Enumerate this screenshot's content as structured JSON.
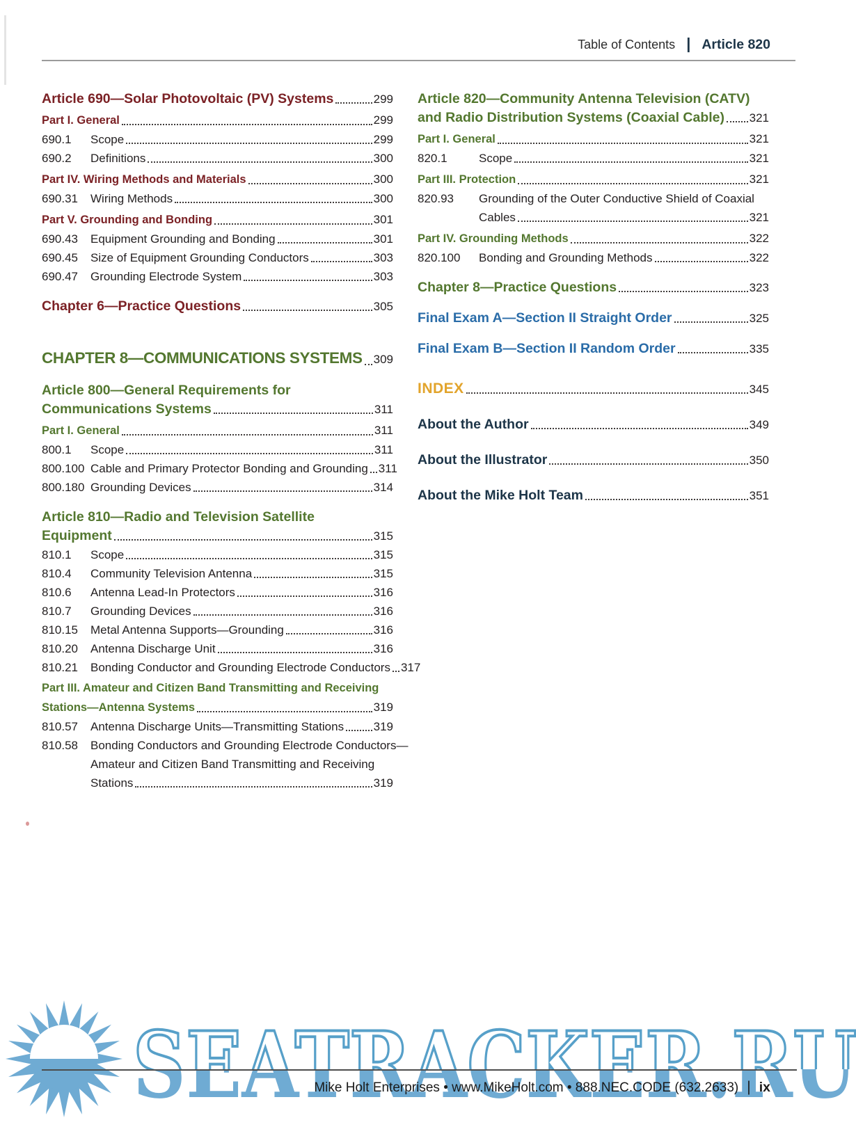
{
  "palette": {
    "maroon": "#7b2125",
    "green": "#53772f",
    "blue": "#2a6ca8",
    "gold": "#e2a42c",
    "navy": "#1d3548",
    "body_text": "#231f20",
    "watermark_fill": "#6fabd3",
    "watermark_outline": "#57a0c9"
  },
  "header": {
    "section": "Table of Contents",
    "divider": "|",
    "article": "Article 820"
  },
  "footer": {
    "info": "Mike Holt Enterprises  •  www.MikeHolt.com  •  888.NEC.CODE (632.2633)",
    "divider": "|",
    "page_number": "ix"
  },
  "watermark": {
    "text": "SEATRACKER.RU",
    "sun_icon": "sun-logo"
  },
  "columns": {
    "left": [
      {
        "style": "article-m",
        "lines": [
          "Article 690—Solar Photovoltaic (PV) Systems"
        ],
        "page": "299"
      },
      {
        "style": "part-m",
        "lines": [
          "Part I. General"
        ],
        "page": "299"
      },
      {
        "style": "item",
        "num": "690.1",
        "lines": [
          "Scope"
        ],
        "page": "299"
      },
      {
        "style": "item",
        "num": "690.2",
        "lines": [
          "Definitions"
        ],
        "page": "300"
      },
      {
        "style": "part-m",
        "lines": [
          "Part IV. Wiring Methods and Materials"
        ],
        "page": "300"
      },
      {
        "style": "item",
        "num": "690.31",
        "lines": [
          "Wiring Methods"
        ],
        "page": "300"
      },
      {
        "style": "part-m",
        "lines": [
          "Part V. Grounding and Bonding"
        ],
        "page": "301"
      },
      {
        "style": "item",
        "num": "690.43",
        "lines": [
          "Equipment Grounding and Bonding"
        ],
        "page": "301"
      },
      {
        "style": "item",
        "num": "690.45",
        "lines": [
          "Size of Equipment Grounding Conductors"
        ],
        "page": "303"
      },
      {
        "style": "item",
        "num": "690.47",
        "lines": [
          "Grounding Electrode System"
        ],
        "page": "303"
      },
      {
        "style": "chap-m",
        "lines": [
          "Chapter 6—Practice Questions"
        ],
        "page": "305"
      },
      {
        "style": "chap-big",
        "lines": [
          "CHAPTER 8—COMMUNICATIONS SYSTEMS"
        ],
        "page": "309"
      },
      {
        "style": "article-g",
        "lines": [
          "Article 800—General Requirements for",
          "Communications Systems"
        ],
        "page": "311"
      },
      {
        "style": "part-g",
        "lines": [
          "Part I. General"
        ],
        "page": "311"
      },
      {
        "style": "item",
        "num": "800.1",
        "lines": [
          "Scope"
        ],
        "page": "311"
      },
      {
        "style": "item",
        "num": "800.100",
        "lines": [
          "Cable and Primary Protector Bonding and Grounding"
        ],
        "page": "311"
      },
      {
        "style": "item",
        "num": "800.180",
        "lines": [
          "Grounding Devices"
        ],
        "page": "314"
      },
      {
        "style": "article-g",
        "lines": [
          "Article 810—Radio and Television Satellite",
          "Equipment"
        ],
        "page": "315"
      },
      {
        "style": "item",
        "num": "810.1",
        "lines": [
          "Scope"
        ],
        "page": "315"
      },
      {
        "style": "item",
        "num": "810.4",
        "lines": [
          "Community Television Antenna"
        ],
        "page": "315"
      },
      {
        "style": "item",
        "num": "810.6",
        "lines": [
          "Antenna Lead-In Protectors"
        ],
        "page": "316"
      },
      {
        "style": "item",
        "num": "810.7",
        "lines": [
          "Grounding Devices"
        ],
        "page": "316"
      },
      {
        "style": "item",
        "num": "810.15",
        "lines": [
          "Metal Antenna Supports—Grounding"
        ],
        "page": "316"
      },
      {
        "style": "item",
        "num": "810.20",
        "lines": [
          "Antenna Discharge Unit"
        ],
        "page": "316"
      },
      {
        "style": "item",
        "num": "810.21",
        "lines": [
          "Bonding Conductor and Grounding Electrode Conductors"
        ],
        "page": "317"
      },
      {
        "style": "part-g",
        "lines": [
          "Part III. Amateur and Citizen Band Transmitting and Receiving",
          "Stations—Antenna Systems"
        ],
        "page": "319"
      },
      {
        "style": "item",
        "num": "810.57",
        "lines": [
          "Antenna Discharge Units—Transmitting Stations"
        ],
        "page": "319"
      },
      {
        "style": "item",
        "num": "810.58",
        "lines": [
          "Bonding Conductors and Grounding Electrode Conductors—",
          "Amateur and Citizen Band Transmitting and Receiving",
          "Stations"
        ],
        "page": "319"
      }
    ],
    "right": [
      {
        "style": "article-g",
        "lines": [
          "Article 820—Community Antenna Television (CATV)",
          "and Radio Distribution Systems (Coaxial Cable)"
        ],
        "page": "321"
      },
      {
        "style": "part-g",
        "lines": [
          "Part I. General"
        ],
        "page": "321"
      },
      {
        "style": "item",
        "num": "820.1",
        "lines": [
          "Scope"
        ],
        "page": "321"
      },
      {
        "style": "part-g",
        "lines": [
          "Part III. Protection"
        ],
        "page": "321"
      },
      {
        "style": "item",
        "num": "820.93",
        "lines": [
          "Grounding of the Outer Conductive Shield of Coaxial",
          "Cables"
        ],
        "page": "321"
      },
      {
        "style": "part-g",
        "lines": [
          "Part IV. Grounding Methods"
        ],
        "page": "322"
      },
      {
        "style": "item",
        "num": "820.100",
        "lines": [
          "Bonding and Grounding Methods"
        ],
        "page": "322"
      },
      {
        "style": "chap-g",
        "lines": [
          "Chapter 8—Practice Questions"
        ],
        "page": "323"
      },
      {
        "style": "exam",
        "lines": [
          "Final Exam A—Section II Straight Order"
        ],
        "page": "325"
      },
      {
        "style": "exam",
        "lines": [
          "Final Exam B—Section II Random Order"
        ],
        "page": "335"
      },
      {
        "style": "index",
        "lines": [
          "INDEX"
        ],
        "page": "345"
      },
      {
        "style": "about",
        "lines": [
          "About the Author"
        ],
        "page": "349"
      },
      {
        "style": "about",
        "lines": [
          "About the Illustrator"
        ],
        "page": "350"
      },
      {
        "style": "about",
        "lines": [
          "About the Mike Holt Team"
        ],
        "page": "351"
      }
    ]
  }
}
